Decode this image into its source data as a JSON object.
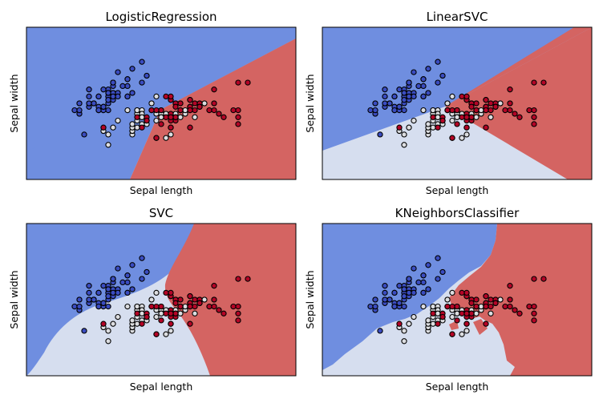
{
  "colors": {
    "class_0": "#3a4cc0",
    "class_1": "#dcdde0",
    "class_2": "#b40426",
    "region_0": "#6f8ee0",
    "region_1": "#d6deef",
    "region_2": "#d46462"
  },
  "chart_data": [
    {
      "type": "scatter",
      "title": "LogisticRegression",
      "xlabel": "Sepal length",
      "ylabel": "Sepal width",
      "grid": false,
      "axis_ticks": false,
      "points_ref": "iris_points"
    },
    {
      "type": "scatter",
      "title": "LinearSVC",
      "xlabel": "Sepal length",
      "ylabel": "Sepal width",
      "grid": false,
      "axis_ticks": false,
      "points_ref": "iris_points"
    },
    {
      "type": "scatter",
      "title": "SVC",
      "xlabel": "Sepal length",
      "ylabel": "Sepal width",
      "grid": false,
      "axis_ticks": false,
      "points_ref": "iris_points"
    },
    {
      "type": "scatter",
      "title": "KNeighborsClassifier",
      "xlabel": "Sepal length",
      "ylabel": "Sepal width",
      "grid": false,
      "axis_ticks": false,
      "points_ref": "iris_points"
    }
  ],
  "iris_points": [
    {
      "x": 5.1,
      "y": 3.5,
      "c": 0
    },
    {
      "x": 4.9,
      "y": 3.0,
      "c": 0
    },
    {
      "x": 4.7,
      "y": 3.2,
      "c": 0
    },
    {
      "x": 4.6,
      "y": 3.1,
      "c": 0
    },
    {
      "x": 5.0,
      "y": 3.6,
      "c": 0
    },
    {
      "x": 5.4,
      "y": 3.9,
      "c": 0
    },
    {
      "x": 4.6,
      "y": 3.4,
      "c": 0
    },
    {
      "x": 5.0,
      "y": 3.4,
      "c": 0
    },
    {
      "x": 4.4,
      "y": 2.9,
      "c": 0
    },
    {
      "x": 4.9,
      "y": 3.1,
      "c": 0
    },
    {
      "x": 5.4,
      "y": 3.7,
      "c": 0
    },
    {
      "x": 4.8,
      "y": 3.4,
      "c": 0
    },
    {
      "x": 4.8,
      "y": 3.0,
      "c": 0
    },
    {
      "x": 4.3,
      "y": 3.0,
      "c": 0
    },
    {
      "x": 5.8,
      "y": 4.0,
      "c": 0
    },
    {
      "x": 5.7,
      "y": 4.4,
      "c": 0
    },
    {
      "x": 5.4,
      "y": 3.9,
      "c": 0
    },
    {
      "x": 5.1,
      "y": 3.5,
      "c": 0
    },
    {
      "x": 5.7,
      "y": 3.8,
      "c": 0
    },
    {
      "x": 5.1,
      "y": 3.8,
      "c": 0
    },
    {
      "x": 5.4,
      "y": 3.4,
      "c": 0
    },
    {
      "x": 5.1,
      "y": 3.7,
      "c": 0
    },
    {
      "x": 4.6,
      "y": 3.6,
      "c": 0
    },
    {
      "x": 5.1,
      "y": 3.3,
      "c": 0
    },
    {
      "x": 4.8,
      "y": 3.4,
      "c": 0
    },
    {
      "x": 5.0,
      "y": 3.0,
      "c": 0
    },
    {
      "x": 5.0,
      "y": 3.4,
      "c": 0
    },
    {
      "x": 5.2,
      "y": 3.5,
      "c": 0
    },
    {
      "x": 5.2,
      "y": 3.4,
      "c": 0
    },
    {
      "x": 4.7,
      "y": 3.2,
      "c": 0
    },
    {
      "x": 4.8,
      "y": 3.1,
      "c": 0
    },
    {
      "x": 5.4,
      "y": 3.4,
      "c": 0
    },
    {
      "x": 5.2,
      "y": 4.1,
      "c": 0
    },
    {
      "x": 5.5,
      "y": 4.2,
      "c": 0
    },
    {
      "x": 4.9,
      "y": 3.1,
      "c": 0
    },
    {
      "x": 5.0,
      "y": 3.2,
      "c": 0
    },
    {
      "x": 5.5,
      "y": 3.5,
      "c": 0
    },
    {
      "x": 4.9,
      "y": 3.6,
      "c": 0
    },
    {
      "x": 4.4,
      "y": 3.0,
      "c": 0
    },
    {
      "x": 5.1,
      "y": 3.4,
      "c": 0
    },
    {
      "x": 5.0,
      "y": 3.5,
      "c": 0
    },
    {
      "x": 4.5,
      "y": 2.3,
      "c": 0
    },
    {
      "x": 4.4,
      "y": 3.2,
      "c": 0
    },
    {
      "x": 5.0,
      "y": 3.5,
      "c": 0
    },
    {
      "x": 5.1,
      "y": 3.8,
      "c": 0
    },
    {
      "x": 4.8,
      "y": 3.0,
      "c": 0
    },
    {
      "x": 5.1,
      "y": 3.8,
      "c": 0
    },
    {
      "x": 4.6,
      "y": 3.2,
      "c": 0
    },
    {
      "x": 5.3,
      "y": 3.7,
      "c": 0
    },
    {
      "x": 5.0,
      "y": 3.3,
      "c": 0
    },
    {
      "x": 7.0,
      "y": 3.2,
      "c": 1
    },
    {
      "x": 6.4,
      "y": 3.2,
      "c": 1
    },
    {
      "x": 6.9,
      "y": 3.1,
      "c": 1
    },
    {
      "x": 5.5,
      "y": 2.3,
      "c": 1
    },
    {
      "x": 6.5,
      "y": 2.8,
      "c": 1
    },
    {
      "x": 5.7,
      "y": 2.8,
      "c": 1
    },
    {
      "x": 6.3,
      "y": 3.3,
      "c": 1
    },
    {
      "x": 4.9,
      "y": 2.4,
      "c": 1
    },
    {
      "x": 6.6,
      "y": 2.9,
      "c": 1
    },
    {
      "x": 5.2,
      "y": 2.7,
      "c": 1
    },
    {
      "x": 5.0,
      "y": 2.0,
      "c": 1
    },
    {
      "x": 5.9,
      "y": 3.0,
      "c": 1
    },
    {
      "x": 6.0,
      "y": 2.2,
      "c": 1
    },
    {
      "x": 6.1,
      "y": 2.9,
      "c": 1
    },
    {
      "x": 5.6,
      "y": 2.9,
      "c": 1
    },
    {
      "x": 6.7,
      "y": 3.1,
      "c": 1
    },
    {
      "x": 5.6,
      "y": 3.0,
      "c": 1
    },
    {
      "x": 5.8,
      "y": 2.7,
      "c": 1
    },
    {
      "x": 6.2,
      "y": 2.2,
      "c": 1
    },
    {
      "x": 5.6,
      "y": 2.5,
      "c": 1
    },
    {
      "x": 5.9,
      "y": 3.2,
      "c": 1
    },
    {
      "x": 6.1,
      "y": 2.8,
      "c": 1
    },
    {
      "x": 6.3,
      "y": 2.5,
      "c": 1
    },
    {
      "x": 6.1,
      "y": 2.8,
      "c": 1
    },
    {
      "x": 6.4,
      "y": 2.9,
      "c": 1
    },
    {
      "x": 6.6,
      "y": 3.0,
      "c": 1
    },
    {
      "x": 6.8,
      "y": 2.8,
      "c": 1
    },
    {
      "x": 6.7,
      "y": 3.0,
      "c": 1
    },
    {
      "x": 6.0,
      "y": 2.9,
      "c": 1
    },
    {
      "x": 5.7,
      "y": 2.6,
      "c": 1
    },
    {
      "x": 5.5,
      "y": 2.4,
      "c": 1
    },
    {
      "x": 5.5,
      "y": 2.4,
      "c": 1
    },
    {
      "x": 5.8,
      "y": 2.7,
      "c": 1
    },
    {
      "x": 6.0,
      "y": 2.7,
      "c": 1
    },
    {
      "x": 5.4,
      "y": 3.0,
      "c": 1
    },
    {
      "x": 6.0,
      "y": 3.4,
      "c": 1
    },
    {
      "x": 6.7,
      "y": 3.1,
      "c": 1
    },
    {
      "x": 6.3,
      "y": 2.3,
      "c": 1
    },
    {
      "x": 5.6,
      "y": 3.0,
      "c": 1
    },
    {
      "x": 5.5,
      "y": 2.5,
      "c": 1
    },
    {
      "x": 5.5,
      "y": 2.6,
      "c": 1
    },
    {
      "x": 6.1,
      "y": 3.0,
      "c": 1
    },
    {
      "x": 5.8,
      "y": 2.6,
      "c": 1
    },
    {
      "x": 5.0,
      "y": 2.3,
      "c": 1
    },
    {
      "x": 5.6,
      "y": 2.7,
      "c": 1
    },
    {
      "x": 5.7,
      "y": 3.0,
      "c": 1
    },
    {
      "x": 5.7,
      "y": 2.9,
      "c": 1
    },
    {
      "x": 6.2,
      "y": 2.9,
      "c": 1
    },
    {
      "x": 5.1,
      "y": 2.5,
      "c": 1
    },
    {
      "x": 5.7,
      "y": 2.8,
      "c": 1
    },
    {
      "x": 6.3,
      "y": 3.3,
      "c": 2
    },
    {
      "x": 5.8,
      "y": 2.7,
      "c": 2
    },
    {
      "x": 7.1,
      "y": 3.0,
      "c": 2
    },
    {
      "x": 6.3,
      "y": 2.9,
      "c": 2
    },
    {
      "x": 6.5,
      "y": 3.0,
      "c": 2
    },
    {
      "x": 7.6,
      "y": 3.0,
      "c": 2
    },
    {
      "x": 4.9,
      "y": 2.5,
      "c": 2
    },
    {
      "x": 7.3,
      "y": 2.9,
      "c": 2
    },
    {
      "x": 6.7,
      "y": 2.5,
      "c": 2
    },
    {
      "x": 7.2,
      "y": 3.6,
      "c": 2
    },
    {
      "x": 6.5,
      "y": 3.2,
      "c": 2
    },
    {
      "x": 6.4,
      "y": 2.7,
      "c": 2
    },
    {
      "x": 6.8,
      "y": 3.0,
      "c": 2
    },
    {
      "x": 5.7,
      "y": 2.5,
      "c": 2
    },
    {
      "x": 5.8,
      "y": 2.8,
      "c": 2
    },
    {
      "x": 6.4,
      "y": 3.2,
      "c": 2
    },
    {
      "x": 6.5,
      "y": 3.0,
      "c": 2
    },
    {
      "x": 7.7,
      "y": 3.8,
      "c": 2
    },
    {
      "x": 7.7,
      "y": 2.6,
      "c": 2
    },
    {
      "x": 6.0,
      "y": 2.2,
      "c": 2
    },
    {
      "x": 6.9,
      "y": 3.2,
      "c": 2
    },
    {
      "x": 5.6,
      "y": 2.8,
      "c": 2
    },
    {
      "x": 7.7,
      "y": 2.8,
      "c": 2
    },
    {
      "x": 6.3,
      "y": 2.7,
      "c": 2
    },
    {
      "x": 6.7,
      "y": 3.3,
      "c": 2
    },
    {
      "x": 7.2,
      "y": 3.2,
      "c": 2
    },
    {
      "x": 6.2,
      "y": 2.8,
      "c": 2
    },
    {
      "x": 6.1,
      "y": 3.0,
      "c": 2
    },
    {
      "x": 6.4,
      "y": 2.8,
      "c": 2
    },
    {
      "x": 7.2,
      "y": 3.0,
      "c": 2
    },
    {
      "x": 7.4,
      "y": 2.8,
      "c": 2
    },
    {
      "x": 7.9,
      "y": 3.8,
      "c": 2
    },
    {
      "x": 6.4,
      "y": 2.8,
      "c": 2
    },
    {
      "x": 6.3,
      "y": 2.8,
      "c": 2
    },
    {
      "x": 6.1,
      "y": 2.6,
      "c": 2
    },
    {
      "x": 7.7,
      "y": 3.0,
      "c": 2
    },
    {
      "x": 6.3,
      "y": 3.4,
      "c": 2
    },
    {
      "x": 6.4,
      "y": 3.1,
      "c": 2
    },
    {
      "x": 6.0,
      "y": 3.0,
      "c": 2
    },
    {
      "x": 6.9,
      "y": 3.1,
      "c": 2
    },
    {
      "x": 6.7,
      "y": 3.1,
      "c": 2
    },
    {
      "x": 6.9,
      "y": 3.1,
      "c": 2
    },
    {
      "x": 5.8,
      "y": 2.7,
      "c": 2
    },
    {
      "x": 6.8,
      "y": 3.2,
      "c": 2
    },
    {
      "x": 6.7,
      "y": 3.3,
      "c": 2
    },
    {
      "x": 6.7,
      "y": 3.0,
      "c": 2
    },
    {
      "x": 6.3,
      "y": 2.5,
      "c": 2
    },
    {
      "x": 6.5,
      "y": 3.0,
      "c": 2
    },
    {
      "x": 6.2,
      "y": 3.4,
      "c": 2
    },
    {
      "x": 5.9,
      "y": 3.0,
      "c": 2
    }
  ]
}
